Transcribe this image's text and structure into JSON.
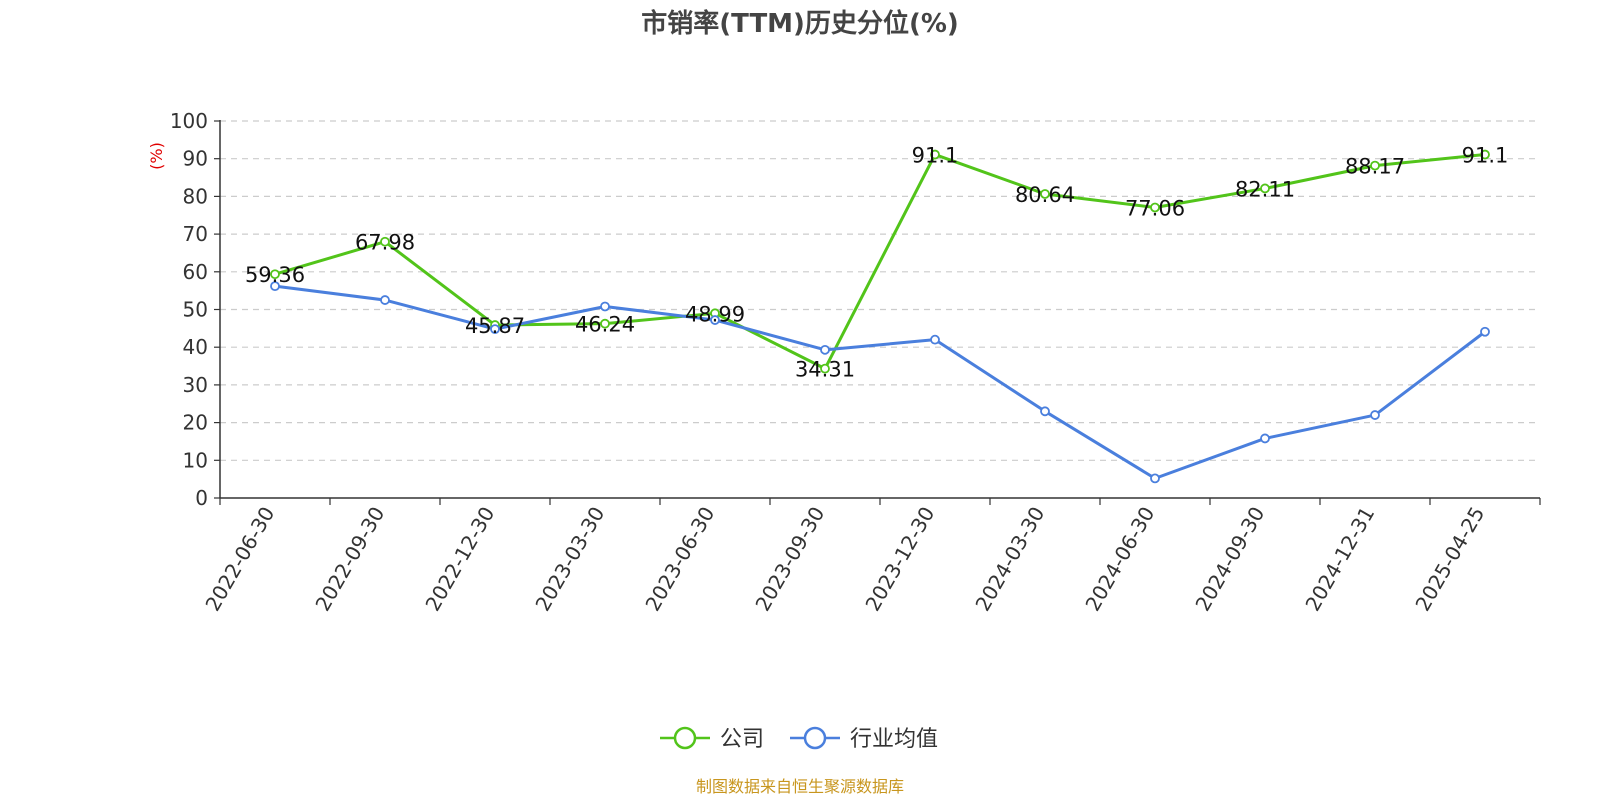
{
  "chart_data": {
    "type": "line",
    "title": "市销率(TTM)历史分位(%)",
    "ylabel": "(%)",
    "xlabel": "",
    "ylim": [
      0,
      100
    ],
    "yticks": [
      0,
      10,
      20,
      30,
      40,
      50,
      60,
      70,
      80,
      90,
      100
    ],
    "categories": [
      "2022-06-30",
      "2022-09-30",
      "2022-12-30",
      "2023-03-30",
      "2023-06-30",
      "2023-09-30",
      "2023-12-30",
      "2024-03-30",
      "2024-06-30",
      "2024-09-30",
      "2024-12-31",
      "2025-04-25"
    ],
    "series": [
      {
        "name": "公司",
        "color": "#52c41a",
        "values": [
          59.36,
          67.98,
          45.87,
          46.24,
          48.99,
          34.31,
          91.1,
          80.64,
          77.06,
          82.11,
          88.17,
          91.1
        ],
        "show_labels": true
      },
      {
        "name": "行业均值",
        "color": "#4a7fdd",
        "values": [
          56.2,
          52.5,
          44.8,
          50.8,
          47.2,
          39.3,
          42.0,
          23.0,
          5.2,
          15.8,
          22.0,
          44.1
        ],
        "show_labels": false
      }
    ],
    "grid": true,
    "legend_position": "bottom-center",
    "source": "制图数据来自恒生聚源数据库"
  },
  "colors": {
    "axis": "#333333",
    "grid": "#cccccc",
    "ylabel": "#e00000",
    "source": "#c8961e"
  }
}
